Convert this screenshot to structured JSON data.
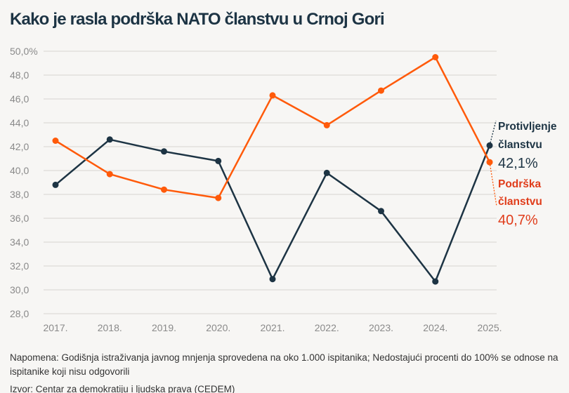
{
  "chart_data": {
    "type": "line",
    "title": "Kako je rasla podrška NATO članstvu u Crnoj Gori",
    "categories": [
      "2017.",
      "2018.",
      "2019.",
      "2020.",
      "2021.",
      "2022.",
      "2023.",
      "2024.",
      "2025."
    ],
    "y_ticks": [
      "28,0",
      "30,0",
      "32,0",
      "34,0",
      "36,0",
      "38,0",
      "40,0",
      "42,0",
      "44,0",
      "46,0",
      "48,0",
      "50,0%"
    ],
    "ylim": [
      28,
      50
    ],
    "grid": true,
    "series": [
      {
        "name": "Protivljenje članstvu",
        "name_lines": [
          "Protivljenje",
          "članstvu"
        ],
        "last_label": "42,1%",
        "color": "#1d3444",
        "values": [
          38.8,
          42.6,
          41.6,
          40.8,
          30.9,
          39.8,
          36.6,
          30.7,
          42.1
        ]
      },
      {
        "name": "Podrška članstvu",
        "name_lines": [
          "Podrška",
          "članstvu"
        ],
        "last_label": "40,7%",
        "color": "#ff5a0a",
        "label_color": "#e03c1a",
        "values": [
          42.5,
          39.7,
          38.4,
          37.7,
          46.3,
          43.8,
          46.7,
          49.5,
          40.7
        ]
      }
    ]
  },
  "notes": {
    "note": "Napomena: Godišnja istraživanja javnog mnjenja sprovedena na oko 1.000 ispitanika; Nedostajući procenti do 100% se odnose na ispitanike koji nisu odgovorili",
    "source": "Izvor: Centar za demokratiju i ljudska prava (CEDEM)"
  }
}
